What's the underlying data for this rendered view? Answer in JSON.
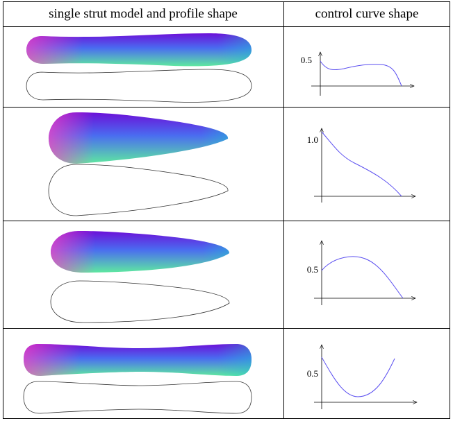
{
  "header": {
    "columns": [
      "single strut model and profile shape",
      "control curve shape"
    ]
  },
  "table": {
    "rows": [
      {
        "curve_label": "0.5"
      },
      {
        "curve_label": "1.0"
      },
      {
        "curve_label": "0.5"
      },
      {
        "curve_label": "0.5"
      }
    ]
  }
}
